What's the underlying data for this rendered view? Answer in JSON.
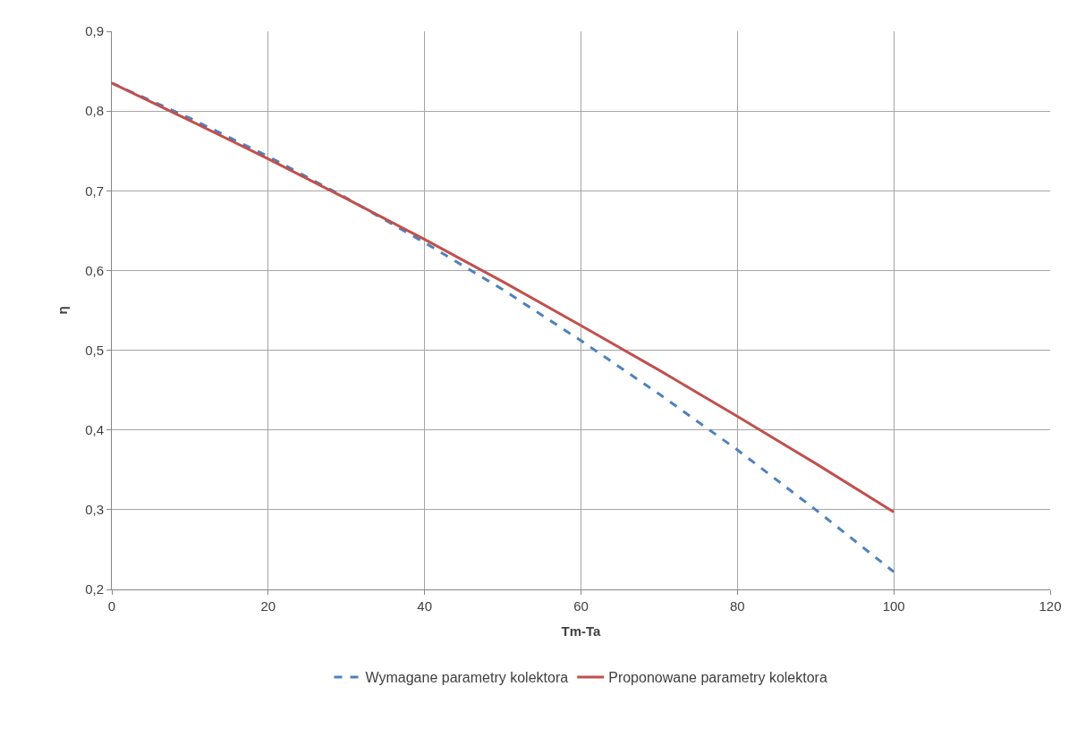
{
  "chart_data": {
    "type": "line",
    "xlabel": "Tm-Ta",
    "ylabel": "η",
    "x": [
      0,
      10,
      20,
      30,
      40,
      50,
      60,
      70,
      80,
      90,
      100
    ],
    "series": [
      {
        "name": "Wymagane parametry kolektora",
        "color": "#4f81bd",
        "line_style": "dashed",
        "values": [
          0.835,
          0.791,
          0.743,
          0.691,
          0.635,
          0.576,
          0.512,
          0.445,
          0.375,
          0.3,
          0.222
        ]
      },
      {
        "name": "Proponowane parametry kolektora",
        "color": "#c0504d",
        "line_style": "solid",
        "values": [
          0.835,
          0.788,
          0.74,
          0.69,
          0.639,
          0.586,
          0.531,
          0.475,
          0.417,
          0.358,
          0.297
        ]
      }
    ],
    "xlim": [
      0,
      120
    ],
    "xticks": [
      0,
      20,
      40,
      60,
      80,
      100,
      120
    ],
    "ylim": [
      0.2,
      0.9
    ],
    "yticks": [
      {
        "value": 0.2,
        "label": "0,2"
      },
      {
        "value": 0.3,
        "label": "0,3"
      },
      {
        "value": 0.4,
        "label": "0,4"
      },
      {
        "value": 0.5,
        "label": "0,5"
      },
      {
        "value": 0.6,
        "label": "0,6"
      },
      {
        "value": 0.7,
        "label": "0,7"
      },
      {
        "value": 0.8,
        "label": "0,8"
      },
      {
        "value": 0.9,
        "label": "0,9"
      }
    ],
    "grid": true,
    "legend": "bottom",
    "marker": "none"
  }
}
